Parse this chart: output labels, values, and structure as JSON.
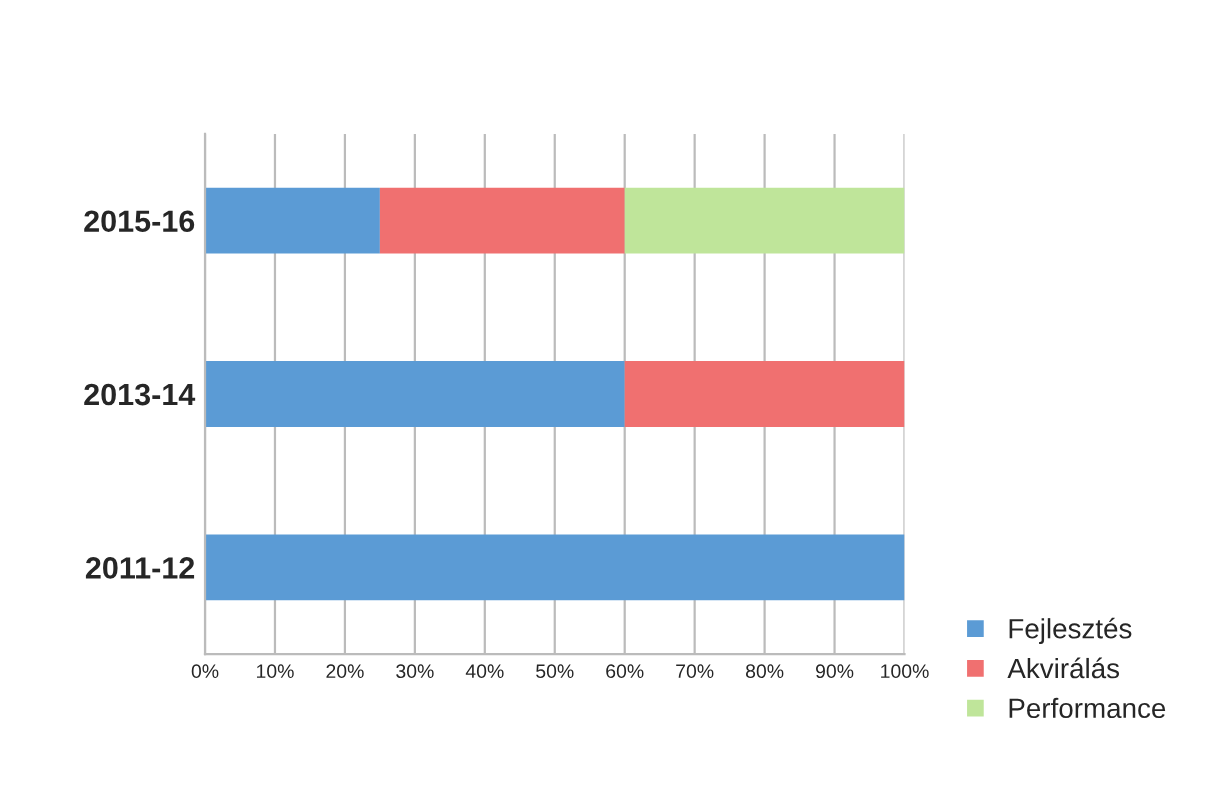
{
  "chart_data": {
    "type": "bar",
    "orientation": "horizontal",
    "stacked": true,
    "categories": [
      "2015-16",
      "2013-14",
      "2011-12"
    ],
    "series": [
      {
        "name": "Fejlesztés",
        "color": "#5b9bd5",
        "values": [
          25,
          60,
          100
        ]
      },
      {
        "name": "Akvirálás",
        "color": "#f07070",
        "values": [
          35,
          40,
          null
        ]
      },
      {
        "name": "Performance",
        "color": "#bfe59a",
        "values": [
          40,
          null,
          null
        ]
      }
    ],
    "xlim": [
      0,
      100
    ],
    "xticks": [
      {
        "value": 0,
        "label": "0%"
      },
      {
        "value": 10,
        "label": "10%"
      },
      {
        "value": 20,
        "label": "20%"
      },
      {
        "value": 30,
        "label": "30%"
      },
      {
        "value": 40,
        "label": "40%"
      },
      {
        "value": 50,
        "label": "50%"
      },
      {
        "value": 60,
        "label": "60%"
      },
      {
        "value": 70,
        "label": "70%"
      },
      {
        "value": 80,
        "label": "80%"
      },
      {
        "value": 90,
        "label": "90%"
      },
      {
        "value": 100,
        "label": "100%"
      }
    ],
    "grid": "x",
    "legend": "bottom right"
  }
}
